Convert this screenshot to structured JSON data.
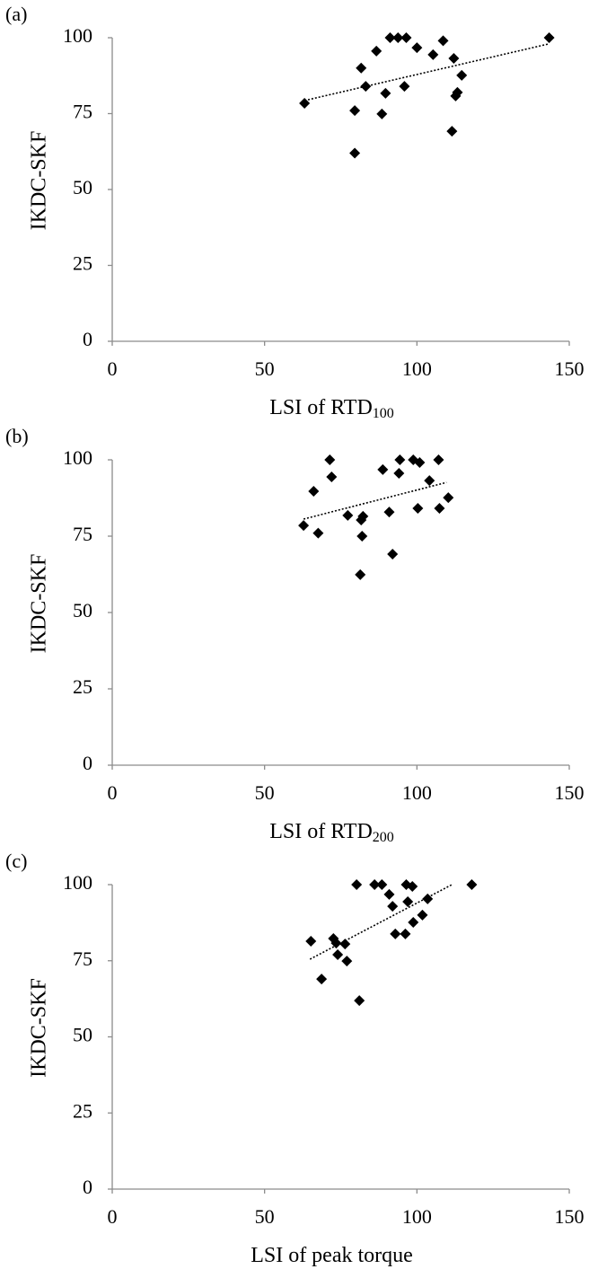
{
  "chart_data": [
    {
      "type": "scatter",
      "panel_label": "(a)",
      "ylabel": "IKDC-SKF",
      "xlabel": "LSI of RTD",
      "xlabel_sub": "100",
      "xlim": [
        0,
        150
      ],
      "xticks": [
        0,
        50,
        100,
        150
      ],
      "ylim": [
        0,
        100
      ],
      "yticks": [
        0,
        25,
        50,
        75,
        100
      ],
      "color": "#000000",
      "x": [
        63.1,
        79.6,
        79.6,
        81.7,
        83.2,
        86.7,
        88.5,
        89.7,
        91.2,
        93.8,
        95.9,
        96.5,
        100,
        105.3,
        108.6,
        112.1,
        111.5,
        112.7,
        113.3,
        114.7,
        143.4
      ],
      "values": [
        78.4,
        76,
        62,
        90,
        84,
        95.6,
        74.9,
        81.7,
        100,
        100,
        84,
        100,
        96.7,
        94.4,
        99,
        93.2,
        69.2,
        80.8,
        82,
        87.6,
        100
      ],
      "trendline": {
        "x": [
          63.1,
          143
        ],
        "y": [
          79.3,
          97.9
        ]
      }
    },
    {
      "type": "scatter",
      "panel_label": "(b)",
      "ylabel": "IKDC-SKF",
      "xlabel": "LSI of RTD",
      "xlabel_sub": "200",
      "xlim": [
        0,
        150
      ],
      "xticks": [
        0,
        50,
        100,
        150
      ],
      "ylim": [
        0,
        100
      ],
      "yticks": [
        0,
        25,
        50,
        75,
        100
      ],
      "color": "#000000",
      "x": [
        62.8,
        66.1,
        67.6,
        71.4,
        72,
        77.3,
        81.7,
        82.3,
        82,
        81.4,
        88.8,
        90.9,
        92,
        94.4,
        94.1,
        98.8,
        100.3,
        100.9,
        104.1,
        107.1,
        107.4,
        110.3
      ],
      "values": [
        78.5,
        89.7,
        76,
        100,
        94.4,
        81.8,
        80.3,
        81.5,
        75,
        62.4,
        96.8,
        82.9,
        69.1,
        100,
        95.6,
        100,
        84.1,
        99.1,
        93.2,
        100,
        84.1,
        87.6
      ],
      "trendline": {
        "x": [
          62.8,
          109.7
        ],
        "y": [
          80.6,
          92.6
        ]
      }
    },
    {
      "type": "scatter",
      "panel_label": "(c)",
      "ylabel": "IKDC-SKF",
      "xlabel": "LSI of peak torque",
      "xlim": [
        0,
        150
      ],
      "xticks": [
        0,
        50,
        100,
        150
      ],
      "ylim": [
        0,
        100
      ],
      "yticks": [
        0,
        25,
        50,
        75,
        100
      ],
      "color": "#000000",
      "x": [
        65.2,
        68.7,
        72.6,
        73.5,
        74,
        76.4,
        77,
        80.2,
        81.1,
        86.1,
        88.5,
        90.9,
        92,
        92.9,
        96.2,
        96.5,
        97,
        98.5,
        98.8,
        101.8,
        103.5,
        118
      ],
      "values": [
        81.4,
        69,
        82.3,
        80.8,
        77,
        80.5,
        74.9,
        100,
        61.9,
        100,
        100,
        96.8,
        92.9,
        83.8,
        83.8,
        100,
        94.4,
        99.4,
        87.6,
        90,
        95.3,
        100
      ],
      "trendline": {
        "x": [
          64.9,
          111.5
        ],
        "y": [
          75.5,
          100
        ]
      }
    }
  ]
}
